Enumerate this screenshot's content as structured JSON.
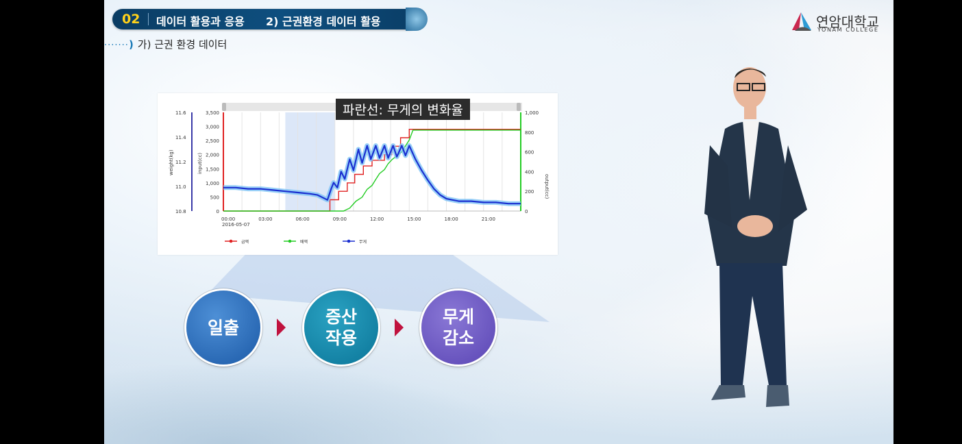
{
  "header": {
    "number": "02",
    "title": "데이터 활용과 응용",
    "subtitle": "2) 근권환경 데이터 활용"
  },
  "section": {
    "label": "가) 근권 환경 데이터"
  },
  "logo": {
    "korean": "연암대학교",
    "english": "YONAM COLLEGE"
  },
  "caption": "파란선: 무게의 변화율",
  "chart_data": {
    "type": "line",
    "x_ticks": [
      "00:00",
      "03:00",
      "06:00",
      "09:00",
      "12:00",
      "15:00",
      "18:00",
      "21:00"
    ],
    "x_date": "2016-05-07",
    "left_axis_weight": {
      "label": "weight(kg)",
      "ticks": [
        "11.6",
        "11.4",
        "11.2",
        "11.0",
        "10.8"
      ],
      "range": [
        10.8,
        11.6
      ]
    },
    "left_axis_input": {
      "label": "input(cc)",
      "ticks": [
        "3,500",
        "3,000",
        "2,500",
        "2,000",
        "1,500",
        "1,000",
        "500",
        "0"
      ],
      "range": [
        0,
        3500
      ]
    },
    "right_axis_output": {
      "label": "output(cc)",
      "ticks": [
        "1,000",
        "800",
        "600",
        "400",
        "200",
        "0"
      ],
      "range": [
        0,
        1000
      ]
    },
    "legend": [
      "급액",
      "배액",
      "무게"
    ],
    "colors": {
      "supply": "#e02020",
      "drain": "#22cc22",
      "weight": "#1a2fd0",
      "weight_glow": "#7fc4f5",
      "highlight": "#dce7f8"
    },
    "series": [
      {
        "name": "급액",
        "axis": "input",
        "points": [
          [
            0,
            0
          ],
          [
            8.6,
            0
          ],
          [
            8.6,
            400
          ],
          [
            9.3,
            400
          ],
          [
            9.3,
            700
          ],
          [
            10,
            700
          ],
          [
            10,
            1000
          ],
          [
            10.6,
            1000
          ],
          [
            10.6,
            1300
          ],
          [
            11.3,
            1300
          ],
          [
            11.3,
            1600
          ],
          [
            12,
            1600
          ],
          [
            12,
            1800
          ],
          [
            13,
            1800
          ],
          [
            13,
            2000
          ],
          [
            13.6,
            2000
          ],
          [
            13.6,
            2300
          ],
          [
            14.3,
            2300
          ],
          [
            14.3,
            2600
          ],
          [
            15,
            2600
          ],
          [
            15,
            2900
          ],
          [
            24,
            2900
          ]
        ]
      },
      {
        "name": "배액",
        "axis": "output",
        "points": [
          [
            0,
            0
          ],
          [
            9.7,
            0
          ],
          [
            10.2,
            30
          ],
          [
            10.7,
            100
          ],
          [
            11.2,
            140
          ],
          [
            11.6,
            220
          ],
          [
            12.0,
            260
          ],
          [
            12.3,
            320
          ],
          [
            12.6,
            380
          ],
          [
            13.0,
            420
          ],
          [
            13.3,
            480
          ],
          [
            13.6,
            520
          ],
          [
            14.0,
            560
          ],
          [
            14.4,
            600
          ],
          [
            14.7,
            660
          ],
          [
            15.0,
            720
          ],
          [
            15.3,
            820
          ],
          [
            24,
            820
          ]
        ]
      },
      {
        "name": "무게",
        "axis": "weight",
        "points": [
          [
            0,
            10.99
          ],
          [
            1,
            10.99
          ],
          [
            2,
            10.98
          ],
          [
            3,
            10.98
          ],
          [
            4,
            10.97
          ],
          [
            5,
            10.96
          ],
          [
            6,
            10.95
          ],
          [
            7,
            10.94
          ],
          [
            7.6,
            10.93
          ],
          [
            8,
            10.91
          ],
          [
            8.4,
            10.89
          ],
          [
            8.7,
            10.98
          ],
          [
            8.9,
            11.03
          ],
          [
            9.2,
            10.99
          ],
          [
            9.5,
            11.12
          ],
          [
            9.8,
            11.06
          ],
          [
            10.2,
            11.22
          ],
          [
            10.5,
            11.13
          ],
          [
            10.9,
            11.3
          ],
          [
            11.2,
            11.19
          ],
          [
            11.6,
            11.33
          ],
          [
            11.9,
            11.22
          ],
          [
            12.3,
            11.33
          ],
          [
            12.6,
            11.23
          ],
          [
            13.0,
            11.33
          ],
          [
            13.3,
            11.23
          ],
          [
            13.7,
            11.33
          ],
          [
            14.0,
            11.24
          ],
          [
            14.4,
            11.33
          ],
          [
            14.7,
            11.25
          ],
          [
            15.0,
            11.33
          ],
          [
            15.5,
            11.22
          ],
          [
            16,
            11.13
          ],
          [
            16.5,
            11.05
          ],
          [
            17,
            10.98
          ],
          [
            17.5,
            10.93
          ],
          [
            18,
            10.9
          ],
          [
            18.5,
            10.89
          ],
          [
            19,
            10.88
          ],
          [
            20,
            10.88
          ],
          [
            21,
            10.87
          ],
          [
            22,
            10.87
          ],
          [
            23,
            10.86
          ],
          [
            24,
            10.86
          ]
        ]
      }
    ],
    "highlight_range": [
      5.0,
      9.0
    ]
  },
  "process": {
    "steps": [
      {
        "lines": [
          "일출"
        ]
      },
      {
        "lines": [
          "증산",
          "작용"
        ]
      },
      {
        "lines": [
          "무게",
          "감소"
        ]
      }
    ],
    "colors": [
      "#2a68b8",
      "#0f86a8",
      "#6a55c2"
    ]
  }
}
